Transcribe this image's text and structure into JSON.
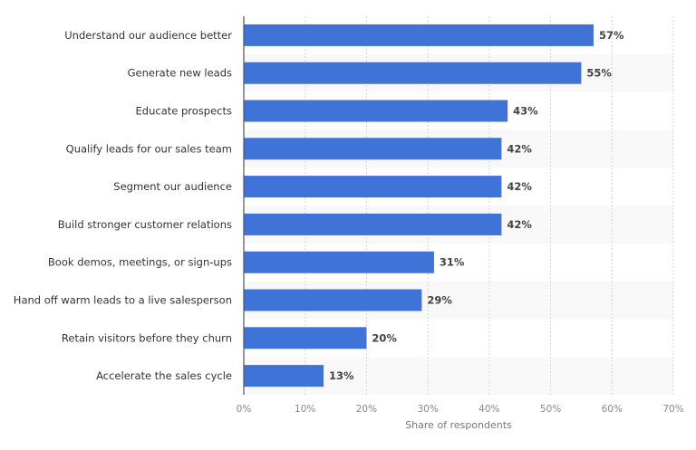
{
  "chart_data": {
    "type": "bar",
    "orientation": "horizontal",
    "categories": [
      "Understand our audience better",
      "Generate new leads",
      "Educate prospects",
      "Qualify leads for our sales team",
      "Segment our audience",
      "Build stronger customer relations",
      "Book demos, meetings, or sign-ups",
      "Hand off warm leads to a live salesperson",
      "Retain visitors before they churn",
      "Accelerate the sales cycle"
    ],
    "values": [
      57,
      55,
      43,
      42,
      42,
      42,
      31,
      29,
      20,
      13
    ],
    "value_suffix": "%",
    "xlabel": "Share of respondents",
    "ylabel": "",
    "xlim": [
      0,
      70
    ],
    "xticks": [
      0,
      10,
      20,
      30,
      40,
      50,
      60,
      70
    ],
    "tick_labels": [
      "0%",
      "10%",
      "20%",
      "30%",
      "40%",
      "50%",
      "60%",
      "70%"
    ],
    "grid": true,
    "bar_color": "#3f73d8",
    "band_color": "#f8f8f8"
  }
}
